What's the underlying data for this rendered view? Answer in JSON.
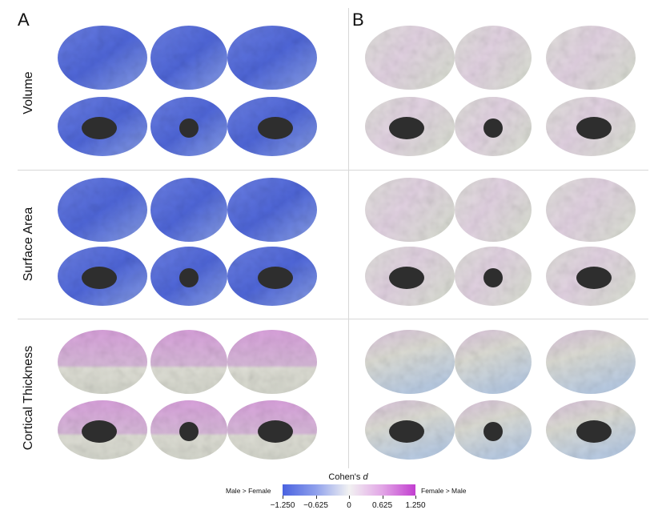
{
  "panels": [
    {
      "letter": "A",
      "rows": [
        {
          "tone": "blue",
          "ratios": [
            0.85,
            0.85,
            0.85,
            0.85,
            0.85,
            0.85
          ]
        },
        {
          "tone": "blue",
          "ratios": [
            0.92,
            0.92,
            0.92,
            0.92,
            0.92,
            0.92
          ]
        },
        {
          "tone": "pink_gray",
          "ratios": [
            0.45,
            0.55,
            0.45,
            0.45,
            0.35,
            0.45
          ]
        }
      ]
    },
    {
      "letter": "B",
      "rows": [
        {
          "tone": "neutral_pink",
          "ratios": [
            0.2,
            0.25,
            0.3,
            0.15,
            0.15,
            0.15
          ]
        },
        {
          "tone": "neutral_pink",
          "ratios": [
            0.15,
            0.2,
            0.2,
            0.15,
            0.15,
            0.15
          ]
        },
        {
          "tone": "mixed",
          "ratios": [
            0.2,
            0.2,
            0.35,
            0.2,
            0.25,
            0.2
          ]
        }
      ]
    }
  ],
  "row_labels": [
    "Volume",
    "Surface Area",
    "Cortical Thickness"
  ],
  "legend": {
    "title": "Cohen's",
    "title_var": "d",
    "left_label": "Male > Female",
    "right_label": "Female > Male",
    "ticks": [
      "−1.250",
      "−0.625",
      "0",
      "0.625",
      "1.250"
    ],
    "tick_values": [
      -1.25,
      -0.625,
      0,
      0.625,
      1.25
    ],
    "range": [
      -1.25,
      1.25
    ]
  },
  "colors": {
    "blue": "#4f66d8",
    "blue_light": "#8e9fe6",
    "gray": "#dcdcd3",
    "pink": "#d8a6dc",
    "light_blue": "#a9c2e0",
    "core": "#2e2e2e"
  }
}
